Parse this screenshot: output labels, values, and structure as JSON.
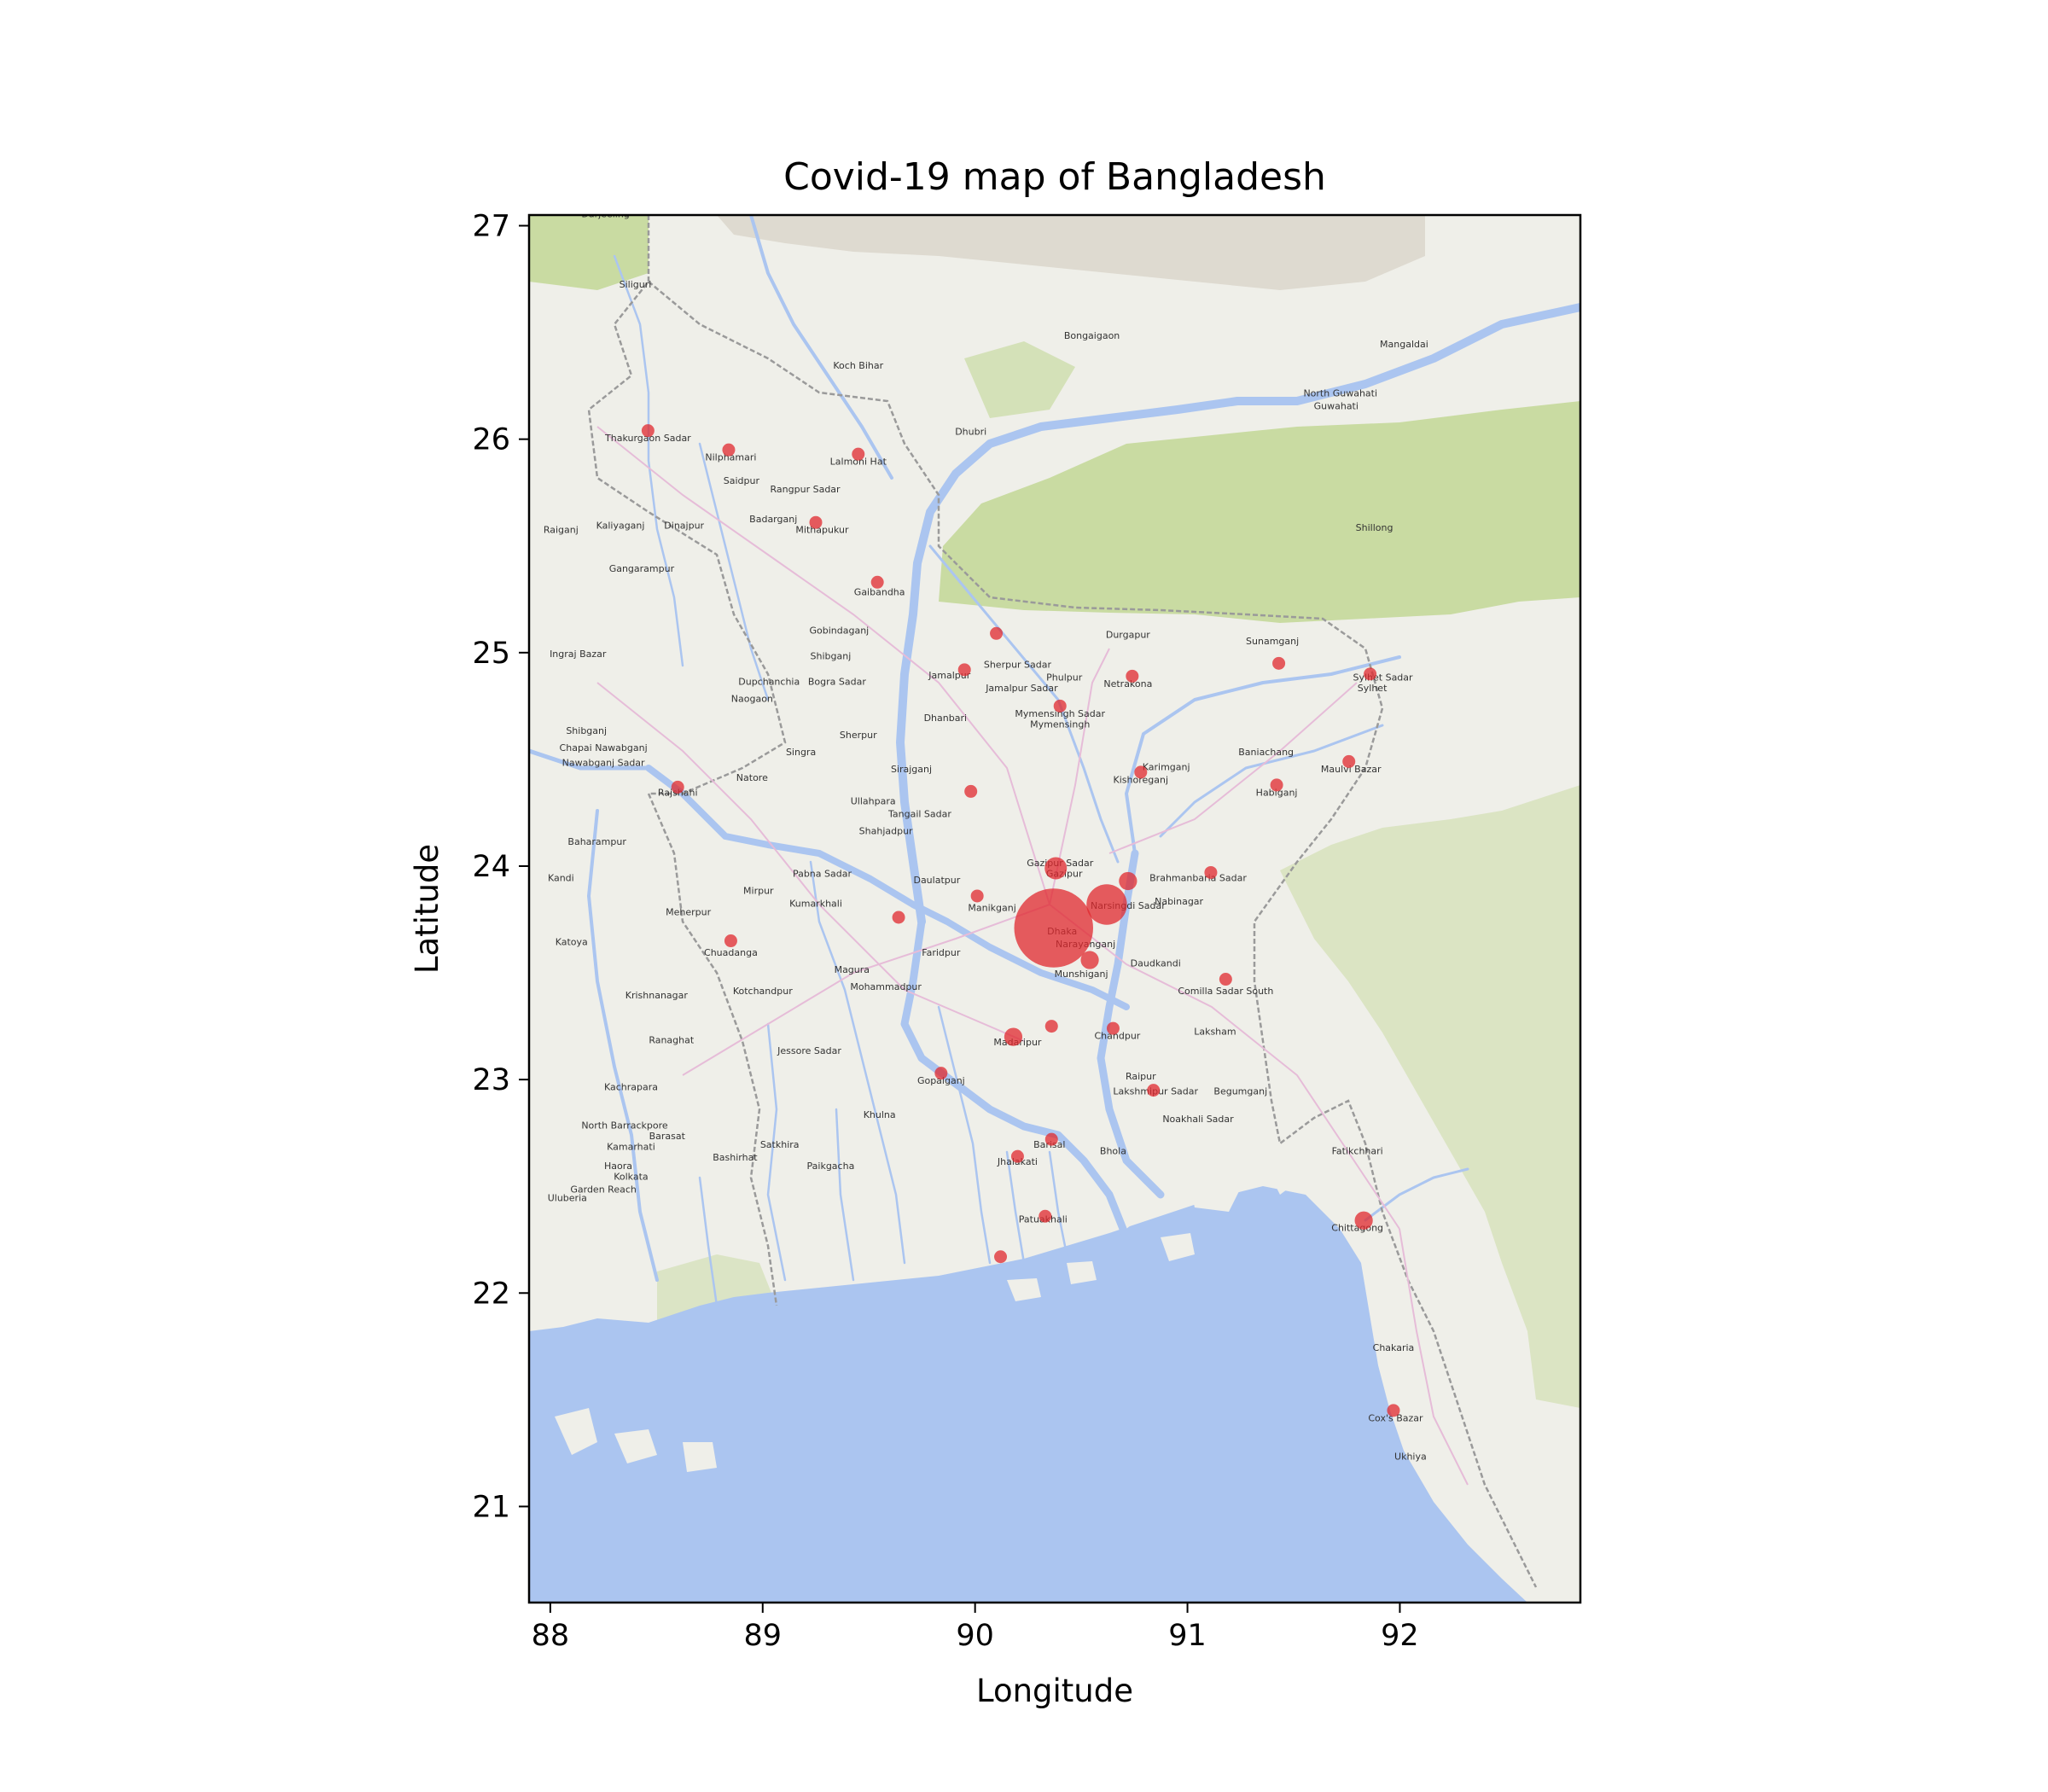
{
  "chart_data": {
    "type": "scatter",
    "title": "Covid-19 map of Bangladesh",
    "xlabel": "Longitude",
    "ylabel": "Latitude",
    "xlim": [
      87.9,
      92.85
    ],
    "ylim": [
      20.55,
      27.05
    ],
    "xticks": [
      88,
      89,
      90,
      91,
      92
    ],
    "yticks": [
      21,
      22,
      23,
      24,
      25,
      26,
      27
    ],
    "grid": false,
    "marker_color": "#e0282e",
    "points": [
      {
        "lon": 88.46,
        "lat": 26.04,
        "size": 1
      },
      {
        "lon": 88.84,
        "lat": 25.95,
        "size": 1
      },
      {
        "lon": 89.45,
        "lat": 25.93,
        "size": 1
      },
      {
        "lon": 89.25,
        "lat": 25.61,
        "size": 1
      },
      {
        "lon": 89.54,
        "lat": 25.33,
        "size": 1
      },
      {
        "lon": 90.1,
        "lat": 25.09,
        "size": 1
      },
      {
        "lon": 89.95,
        "lat": 24.92,
        "size": 1
      },
      {
        "lon": 90.74,
        "lat": 24.89,
        "size": 1
      },
      {
        "lon": 91.43,
        "lat": 24.95,
        "size": 1
      },
      {
        "lon": 91.86,
        "lat": 24.9,
        "size": 1
      },
      {
        "lon": 90.4,
        "lat": 24.75,
        "size": 1
      },
      {
        "lon": 90.78,
        "lat": 24.44,
        "size": 1
      },
      {
        "lon": 91.76,
        "lat": 24.49,
        "size": 1
      },
      {
        "lon": 91.42,
        "lat": 24.38,
        "size": 1
      },
      {
        "lon": 88.6,
        "lat": 24.37,
        "size": 1
      },
      {
        "lon": 89.98,
        "lat": 24.35,
        "size": 1
      },
      {
        "lon": 90.38,
        "lat": 23.99,
        "size": 3
      },
      {
        "lon": 90.72,
        "lat": 23.93,
        "size": 2
      },
      {
        "lon": 91.11,
        "lat": 23.97,
        "size": 1
      },
      {
        "lon": 90.01,
        "lat": 23.86,
        "size": 1
      },
      {
        "lon": 90.62,
        "lat": 23.82,
        "size": 10
      },
      {
        "lon": 90.37,
        "lat": 23.71,
        "size": 38
      },
      {
        "lon": 89.64,
        "lat": 23.76,
        "size": 1
      },
      {
        "lon": 88.85,
        "lat": 23.65,
        "size": 1
      },
      {
        "lon": 90.54,
        "lat": 23.56,
        "size": 2
      },
      {
        "lon": 91.18,
        "lat": 23.47,
        "size": 1
      },
      {
        "lon": 90.36,
        "lat": 23.25,
        "size": 1
      },
      {
        "lon": 90.65,
        "lat": 23.24,
        "size": 1
      },
      {
        "lon": 90.18,
        "lat": 23.2,
        "size": 2
      },
      {
        "lon": 89.84,
        "lat": 23.03,
        "size": 1
      },
      {
        "lon": 90.84,
        "lat": 22.95,
        "size": 1
      },
      {
        "lon": 90.36,
        "lat": 22.72,
        "size": 1
      },
      {
        "lon": 90.2,
        "lat": 22.64,
        "size": 1
      },
      {
        "lon": 90.33,
        "lat": 22.36,
        "size": 1
      },
      {
        "lon": 91.83,
        "lat": 22.34,
        "size": 2
      },
      {
        "lon": 90.12,
        "lat": 22.17,
        "size": 1
      },
      {
        "lon": 91.97,
        "lat": 21.45,
        "size": 1
      }
    ]
  },
  "basemap": {
    "labels": [
      {
        "text": "Thakurgaon Sadar",
        "lon": 88.46,
        "lat": 25.99
      },
      {
        "text": "Nilphamari",
        "lon": 88.85,
        "lat": 25.9
      },
      {
        "text": "Lalmoni Hat",
        "lon": 89.45,
        "lat": 25.88
      },
      {
        "text": "Rangpur Sadar",
        "lon": 89.2,
        "lat": 25.75
      },
      {
        "text": "Saidpur",
        "lon": 88.9,
        "lat": 25.79
      },
      {
        "text": "Mithapukur",
        "lon": 89.28,
        "lat": 25.56
      },
      {
        "text": "Badarganj",
        "lon": 89.05,
        "lat": 25.61
      },
      {
        "text": "Dinajpur",
        "lon": 88.63,
        "lat": 25.58
      },
      {
        "text": "Kaliyaganj",
        "lon": 88.33,
        "lat": 25.58
      },
      {
        "text": "Raiganj",
        "lon": 88.05,
        "lat": 25.56
      },
      {
        "text": "Gangarampur",
        "lon": 88.43,
        "lat": 25.38
      },
      {
        "text": "Gaibandha",
        "lon": 89.55,
        "lat": 25.27
      },
      {
        "text": "Gobindaganj",
        "lon": 89.36,
        "lat": 25.09
      },
      {
        "text": "Shibganj",
        "lon": 89.32,
        "lat": 24.97
      },
      {
        "text": "Bogra Sadar",
        "lon": 89.35,
        "lat": 24.85
      },
      {
        "text": "Dupchanchia",
        "lon": 89.03,
        "lat": 24.85
      },
      {
        "text": "Naogaon",
        "lon": 88.95,
        "lat": 24.77
      },
      {
        "text": "Ingraj Bazar",
        "lon": 88.13,
        "lat": 24.98
      },
      {
        "text": "Shibganj",
        "lon": 88.17,
        "lat": 24.62
      },
      {
        "text": "Chapai Nawabganj",
        "lon": 88.25,
        "lat": 24.54
      },
      {
        "text": "Nawabganj Sadar",
        "lon": 88.25,
        "lat": 24.47
      },
      {
        "text": "Rajshahi",
        "lon": 88.6,
        "lat": 24.33
      },
      {
        "text": "Natore",
        "lon": 88.95,
        "lat": 24.4
      },
      {
        "text": "Sherpur Sadar",
        "lon": 90.2,
        "lat": 24.93
      },
      {
        "text": "Jamalpur Sadar",
        "lon": 90.22,
        "lat": 24.82
      },
      {
        "text": "Jamalpur",
        "lon": 89.88,
        "lat": 24.88
      },
      {
        "text": "Phulpur",
        "lon": 90.42,
        "lat": 24.87
      },
      {
        "text": "Durgapur",
        "lon": 90.72,
        "lat": 25.07
      },
      {
        "text": "Netrakona",
        "lon": 90.72,
        "lat": 24.84
      },
      {
        "text": "Mymensingh Sadar",
        "lon": 90.4,
        "lat": 24.7
      },
      {
        "text": "Mymensingh",
        "lon": 90.4,
        "lat": 24.65
      },
      {
        "text": "Dhanbari",
        "lon": 89.86,
        "lat": 24.68
      },
      {
        "text": "Sherpur",
        "lon": 89.45,
        "lat": 24.6
      },
      {
        "text": "Singra",
        "lon": 89.18,
        "lat": 24.52
      },
      {
        "text": "Sirajganj",
        "lon": 89.7,
        "lat": 24.44
      },
      {
        "text": "Ullahpara",
        "lon": 89.52,
        "lat": 24.29
      },
      {
        "text": "Tangail Sadar",
        "lon": 89.74,
        "lat": 24.23
      },
      {
        "text": "Shahjadpur",
        "lon": 89.58,
        "lat": 24.15
      },
      {
        "text": "Kishoreganj",
        "lon": 90.78,
        "lat": 24.39
      },
      {
        "text": "Karimganj",
        "lon": 90.9,
        "lat": 24.45
      },
      {
        "text": "Sunamganj",
        "lon": 91.4,
        "lat": 25.04
      },
      {
        "text": "Sylhet Sadar",
        "lon": 91.92,
        "lat": 24.87
      },
      {
        "text": "Sylhet",
        "lon": 91.87,
        "lat": 24.82
      },
      {
        "text": "Baniachang",
        "lon": 91.37,
        "lat": 24.52
      },
      {
        "text": "Maulvi Bazar",
        "lon": 91.77,
        "lat": 24.44
      },
      {
        "text": "Habiganj",
        "lon": 91.42,
        "lat": 24.33
      },
      {
        "text": "Gazipur Sadar",
        "lon": 90.4,
        "lat": 24.0
      },
      {
        "text": "Gazipur",
        "lon": 90.42,
        "lat": 23.95
      },
      {
        "text": "Brahmanbaria Sadar",
        "lon": 91.05,
        "lat": 23.93
      },
      {
        "text": "Narsingdi Sadar",
        "lon": 90.72,
        "lat": 23.8
      },
      {
        "text": "Nabinagar",
        "lon": 90.96,
        "lat": 23.82
      },
      {
        "text": "Pabna Sadar",
        "lon": 89.28,
        "lat": 23.95
      },
      {
        "text": "Daulatpur",
        "lon": 89.82,
        "lat": 23.92
      },
      {
        "text": "Mirpur",
        "lon": 88.98,
        "lat": 23.87
      },
      {
        "text": "Kumarkhali",
        "lon": 89.25,
        "lat": 23.81
      },
      {
        "text": "Manikganj",
        "lon": 90.08,
        "lat": 23.79
      },
      {
        "text": "Dhaka",
        "lon": 90.41,
        "lat": 23.68
      },
      {
        "text": "Narayanganj",
        "lon": 90.52,
        "lat": 23.62
      },
      {
        "text": "Chuadanga",
        "lon": 88.85,
        "lat": 23.58
      },
      {
        "text": "Faridpur",
        "lon": 89.84,
        "lat": 23.58
      },
      {
        "text": "Munshiganj",
        "lon": 90.5,
        "lat": 23.48
      },
      {
        "text": "Daudkandi",
        "lon": 90.85,
        "lat": 23.53
      },
      {
        "text": "Comilla Sadar South",
        "lon": 91.18,
        "lat": 23.4
      },
      {
        "text": "Mohammadpur",
        "lon": 89.58,
        "lat": 23.42
      },
      {
        "text": "Magura",
        "lon": 89.42,
        "lat": 23.5
      },
      {
        "text": "Kotchandpur",
        "lon": 89.0,
        "lat": 23.4
      },
      {
        "text": "Madaripur",
        "lon": 90.2,
        "lat": 23.16
      },
      {
        "text": "Chandpur",
        "lon": 90.67,
        "lat": 23.19
      },
      {
        "text": "Laksham",
        "lon": 91.13,
        "lat": 23.21
      },
      {
        "text": "Jessore Sadar",
        "lon": 89.22,
        "lat": 23.12
      },
      {
        "text": "Gopalganj",
        "lon": 89.84,
        "lat": 22.98
      },
      {
        "text": "Raipur",
        "lon": 90.78,
        "lat": 23.0
      },
      {
        "text": "Lakshmipur Sadar",
        "lon": 90.85,
        "lat": 22.93
      },
      {
        "text": "Begumganj",
        "lon": 91.25,
        "lat": 22.93
      },
      {
        "text": "Noakhali Sadar",
        "lon": 91.05,
        "lat": 22.8
      },
      {
        "text": "Khulna",
        "lon": 89.55,
        "lat": 22.82
      },
      {
        "text": "Satkhira",
        "lon": 89.08,
        "lat": 22.68
      },
      {
        "text": "Paikgacha",
        "lon": 89.32,
        "lat": 22.58
      },
      {
        "text": "Barisal",
        "lon": 90.35,
        "lat": 22.68
      },
      {
        "text": "Jhalakati",
        "lon": 90.2,
        "lat": 22.6
      },
      {
        "text": "Patuakhali",
        "lon": 90.32,
        "lat": 22.33
      },
      {
        "text": "Fatikchhari",
        "lon": 91.8,
        "lat": 22.65
      },
      {
        "text": "Chittagong",
        "lon": 91.8,
        "lat": 22.29
      },
      {
        "text": "Chakaria",
        "lon": 91.97,
        "lat": 21.73
      },
      {
        "text": "Cox's Bazar",
        "lon": 91.98,
        "lat": 21.4
      },
      {
        "text": "Ukhiya",
        "lon": 92.05,
        "lat": 21.22
      },
      {
        "text": "Haora",
        "lon": 88.32,
        "lat": 22.58
      },
      {
        "text": "Kolkata",
        "lon": 88.38,
        "lat": 22.53
      },
      {
        "text": "North Barrackpore",
        "lon": 88.35,
        "lat": 22.77
      },
      {
        "text": "Kamarhati",
        "lon": 88.38,
        "lat": 22.67
      },
      {
        "text": "Barasat",
        "lon": 88.55,
        "lat": 22.72
      },
      {
        "text": "Bashirhat",
        "lon": 88.87,
        "lat": 22.62
      },
      {
        "text": "Kachrapara",
        "lon": 88.38,
        "lat": 22.95
      },
      {
        "text": "Krishnanagar",
        "lon": 88.5,
        "lat": 23.38
      },
      {
        "text": "Ranaghat",
        "lon": 88.57,
        "lat": 23.17
      },
      {
        "text": "Garden Reach",
        "lon": 88.25,
        "lat": 22.47
      },
      {
        "text": "Uluberia",
        "lon": 88.08,
        "lat": 22.43
      },
      {
        "text": "Kandi",
        "lon": 88.05,
        "lat": 23.93
      },
      {
        "text": "Baharampur",
        "lon": 88.22,
        "lat": 24.1
      },
      {
        "text": "Katoya",
        "lon": 88.1,
        "lat": 23.63
      },
      {
        "text": "Meherpur",
        "lon": 88.65,
        "lat": 23.77
      },
      {
        "text": "Bhola",
        "lon": 90.65,
        "lat": 22.65
      },
      {
        "text": "Guwahati",
        "lon": 91.7,
        "lat": 26.14
      },
      {
        "text": "North Guwahati",
        "lon": 91.72,
        "lat": 26.2
      },
      {
        "text": "Shillong",
        "lon": 91.88,
        "lat": 25.57
      },
      {
        "text": "Mangaldai",
        "lon": 92.02,
        "lat": 26.43
      },
      {
        "text": "Siliguri",
        "lon": 88.4,
        "lat": 26.71
      },
      {
        "text": "Darjeeling",
        "lon": 88.26,
        "lat": 27.04
      },
      {
        "text": "Koch Bihar",
        "lon": 89.45,
        "lat": 26.33
      },
      {
        "text": "Dhubri",
        "lon": 89.98,
        "lat": 26.02
      },
      {
        "text": "Bongaigaon",
        "lon": 90.55,
        "lat": 26.47
      }
    ]
  }
}
